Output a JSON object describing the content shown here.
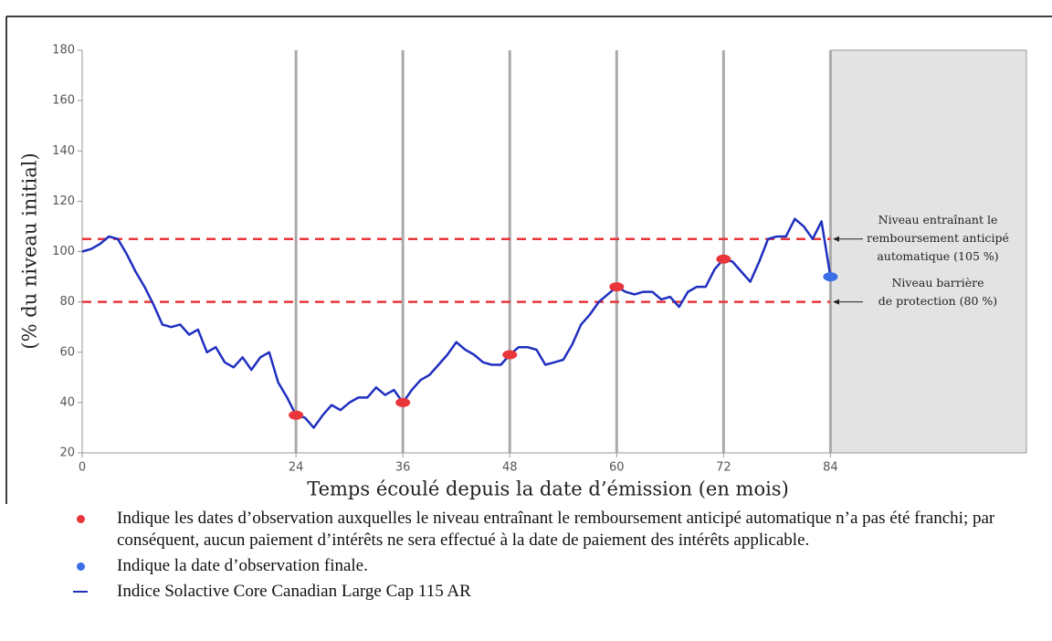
{
  "chart_data": {
    "type": "line",
    "xlabel": "Temps écoulé depuis la date d’émission (en mois)",
    "ylabel": "(% du niveau initial)",
    "xlim": [
      0,
      106
    ],
    "ylim": [
      20,
      180
    ],
    "xticks": [
      0,
      24,
      36,
      48,
      60,
      72,
      84
    ],
    "yticks": [
      20,
      40,
      60,
      80,
      100,
      120,
      140,
      160,
      180
    ],
    "shaded_region": [
      84,
      106
    ],
    "series": [
      {
        "name": "Indice Solactive Core Canadian Large Cap 115 AR",
        "color": "#1f2fbf",
        "x": [
          0,
          1,
          2,
          3,
          4,
          5,
          6,
          7,
          8,
          9,
          10,
          11,
          12,
          13,
          14,
          15,
          16,
          17,
          18,
          19,
          20,
          21,
          22,
          23,
          24,
          25,
          26,
          27,
          28,
          29,
          30,
          31,
          32,
          33,
          34,
          35,
          36,
          37,
          38,
          39,
          40,
          41,
          42,
          43,
          44,
          45,
          46,
          47,
          48,
          49,
          50,
          51,
          52,
          53,
          54,
          55,
          56,
          57,
          58,
          59,
          60,
          61,
          62,
          63,
          64,
          65,
          66,
          67,
          68,
          69,
          70,
          71,
          72,
          73,
          74,
          75,
          76,
          77,
          78,
          79,
          80,
          81,
          82,
          83,
          84
        ],
        "values": [
          100,
          101,
          103,
          106,
          105,
          99,
          92,
          86,
          79,
          71,
          70,
          71,
          67,
          69,
          60,
          62,
          56,
          54,
          58,
          53,
          58,
          60,
          48,
          42,
          35,
          34,
          30,
          35,
          39,
          37,
          40,
          42,
          42,
          46,
          43,
          45,
          40,
          45,
          49,
          51,
          55,
          59,
          64,
          61,
          59,
          56,
          55,
          55,
          59,
          62,
          62,
          61,
          55,
          56,
          57,
          63,
          71,
          75,
          80,
          83,
          86,
          84,
          83,
          84,
          84,
          81,
          82,
          78,
          84,
          86,
          86,
          93,
          97,
          96,
          92,
          88,
          96,
          105,
          106,
          106,
          113,
          110,
          105,
          112,
          90
        ]
      }
    ],
    "observation_dates": {
      "note": "Indique les dates d’observation auxquelles le niveau entraînant le remboursement anticipé automatique n’a pas été franchi; par conséquent, aucun paiement d’intérêts ne sera effectué à la date de paiement des intérêts applicable.",
      "color": "#e8363a",
      "x": [
        24,
        36,
        48,
        60,
        72
      ],
      "values": [
        35,
        40,
        59,
        86,
        97
      ]
    },
    "final_observation": {
      "note": "Indique la date d’observation finale.",
      "color": "#3a6ee8",
      "x": 84,
      "value": 90
    },
    "reference_lines": [
      {
        "value": 105,
        "color": "#e8363a",
        "label": [
          "Niveau entraînant le",
          "remboursement anticipé",
          "automatique (105 %)"
        ]
      },
      {
        "value": 80,
        "color": "#e8363a",
        "label": [
          "Niveau barrière",
          "de protection (80 %)"
        ]
      }
    ]
  }
}
